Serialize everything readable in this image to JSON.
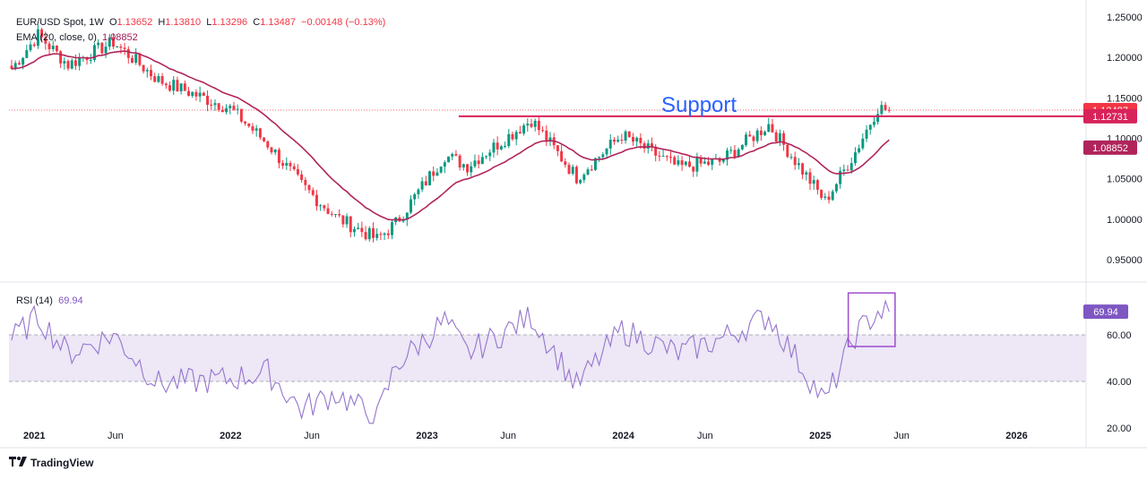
{
  "legend": {
    "symbol": "EUR/USD Spot, 1W",
    "o_label": "O",
    "o": "1.13652",
    "h_label": "H",
    "h": "1.13810",
    "l_label": "L",
    "l": "1.13296",
    "c_label": "C",
    "c": "1.13487",
    "change": "−0.00148 (−0.13%)",
    "ema_label": "EMA (20, close, 0)",
    "ema_value": "1.08852",
    "rsi_label": "RSI (14)",
    "rsi_value": "69.94"
  },
  "branding": {
    "logo_text": "TradingView"
  },
  "colors": {
    "up": "#089981",
    "down": "#f23645",
    "ema": "#b0245b",
    "support": "#d8225a",
    "annotation": "#2962ff",
    "rsi": "#9575cd",
    "rsi_band": "#ede7f6",
    "highlight_box": "#9c4dcc"
  },
  "chart_data": [
    {
      "type": "candlestick",
      "timeframe": "1W",
      "ylim": [
        0.93,
        1.26
      ],
      "y_ticks": [
        "1.25000",
        "1.20000",
        "1.15000",
        "1.10000",
        "1.05000",
        "1.00000",
        "0.95000"
      ],
      "x_ticks": [
        "2021",
        "Jun",
        "2022",
        "Jun",
        "2023",
        "Jun",
        "2024",
        "Jun",
        "2025",
        "Jun",
        "2026"
      ],
      "x_tick_dates": [
        "2021-01-01",
        "2021-06-01",
        "2022-01-01",
        "2022-06-01",
        "2023-01-01",
        "2023-06-01",
        "2024-01-01",
        "2024-06-01",
        "2025-01-01",
        "2025-06-01",
        "2026-01-01"
      ],
      "x_range": [
        "2020-11-15",
        "2026-05-10"
      ],
      "candle_anchor_weeks": [
        "2020-11-20",
        "2021-01-08",
        "2021-03-05",
        "2021-05-28",
        "2021-08-20",
        "2021-12-31",
        "2022-03-11",
        "2022-05-13",
        "2022-07-15",
        "2022-09-30",
        "2022-11-04",
        "2023-02-03",
        "2023-03-17",
        "2023-07-14",
        "2023-10-06",
        "2023-12-29",
        "2024-04-12",
        "2024-06-28",
        "2024-09-27",
        "2025-01-10",
        "2025-03-07",
        "2025-04-18",
        "2025-05-09"
      ],
      "candle_anchor_closes": [
        1.186,
        1.228,
        1.191,
        1.219,
        1.172,
        1.137,
        1.093,
        1.042,
        1.003,
        0.975,
        0.995,
        1.079,
        1.066,
        1.123,
        1.052,
        1.104,
        1.064,
        1.071,
        1.117,
        1.022,
        1.083,
        1.138,
        1.1349
      ],
      "ema_label_value": 1.08852,
      "last_close": 1.13487,
      "annotations": [
        {
          "text": "Support",
          "level": 1.12731,
          "from": "2023-03-01",
          "value_label": "1.12731"
        }
      ],
      "price_tags": [
        {
          "value": 1.13487,
          "label": "1.13487",
          "color": "#f23645"
        },
        {
          "value": 1.12731,
          "label": "1.12731",
          "color": "#d8225a"
        },
        {
          "value": 1.08852,
          "label": "1.08852",
          "color": "#b0245b"
        }
      ]
    },
    {
      "type": "line",
      "name": "RSI (14)",
      "ylim": [
        20,
        80
      ],
      "y_ticks": [
        "60.00",
        "40.00",
        "20.00"
      ],
      "band": [
        40,
        60
      ],
      "last_value": 69.94,
      "anchor_weeks": [
        "2020-11-20",
        "2021-01-08",
        "2021-03-05",
        "2021-05-28",
        "2021-08-20",
        "2021-12-31",
        "2022-03-11",
        "2022-05-13",
        "2022-07-15",
        "2022-09-30",
        "2022-11-04",
        "2023-02-03",
        "2023-03-17",
        "2023-07-14",
        "2023-10-06",
        "2023-12-29",
        "2024-04-12",
        "2024-06-28",
        "2024-09-27",
        "2025-01-10",
        "2025-03-07",
        "2025-04-18",
        "2025-05-09"
      ],
      "anchor_values": [
        58,
        68,
        52,
        60,
        39,
        41,
        44,
        28,
        35,
        24,
        47,
        66,
        52,
        68,
        38,
        62,
        52,
        58,
        68,
        31,
        60,
        70,
        69.94
      ],
      "highlight_box": [
        "2025-02-22",
        "2025-05-20",
        55,
        78
      ]
    }
  ]
}
